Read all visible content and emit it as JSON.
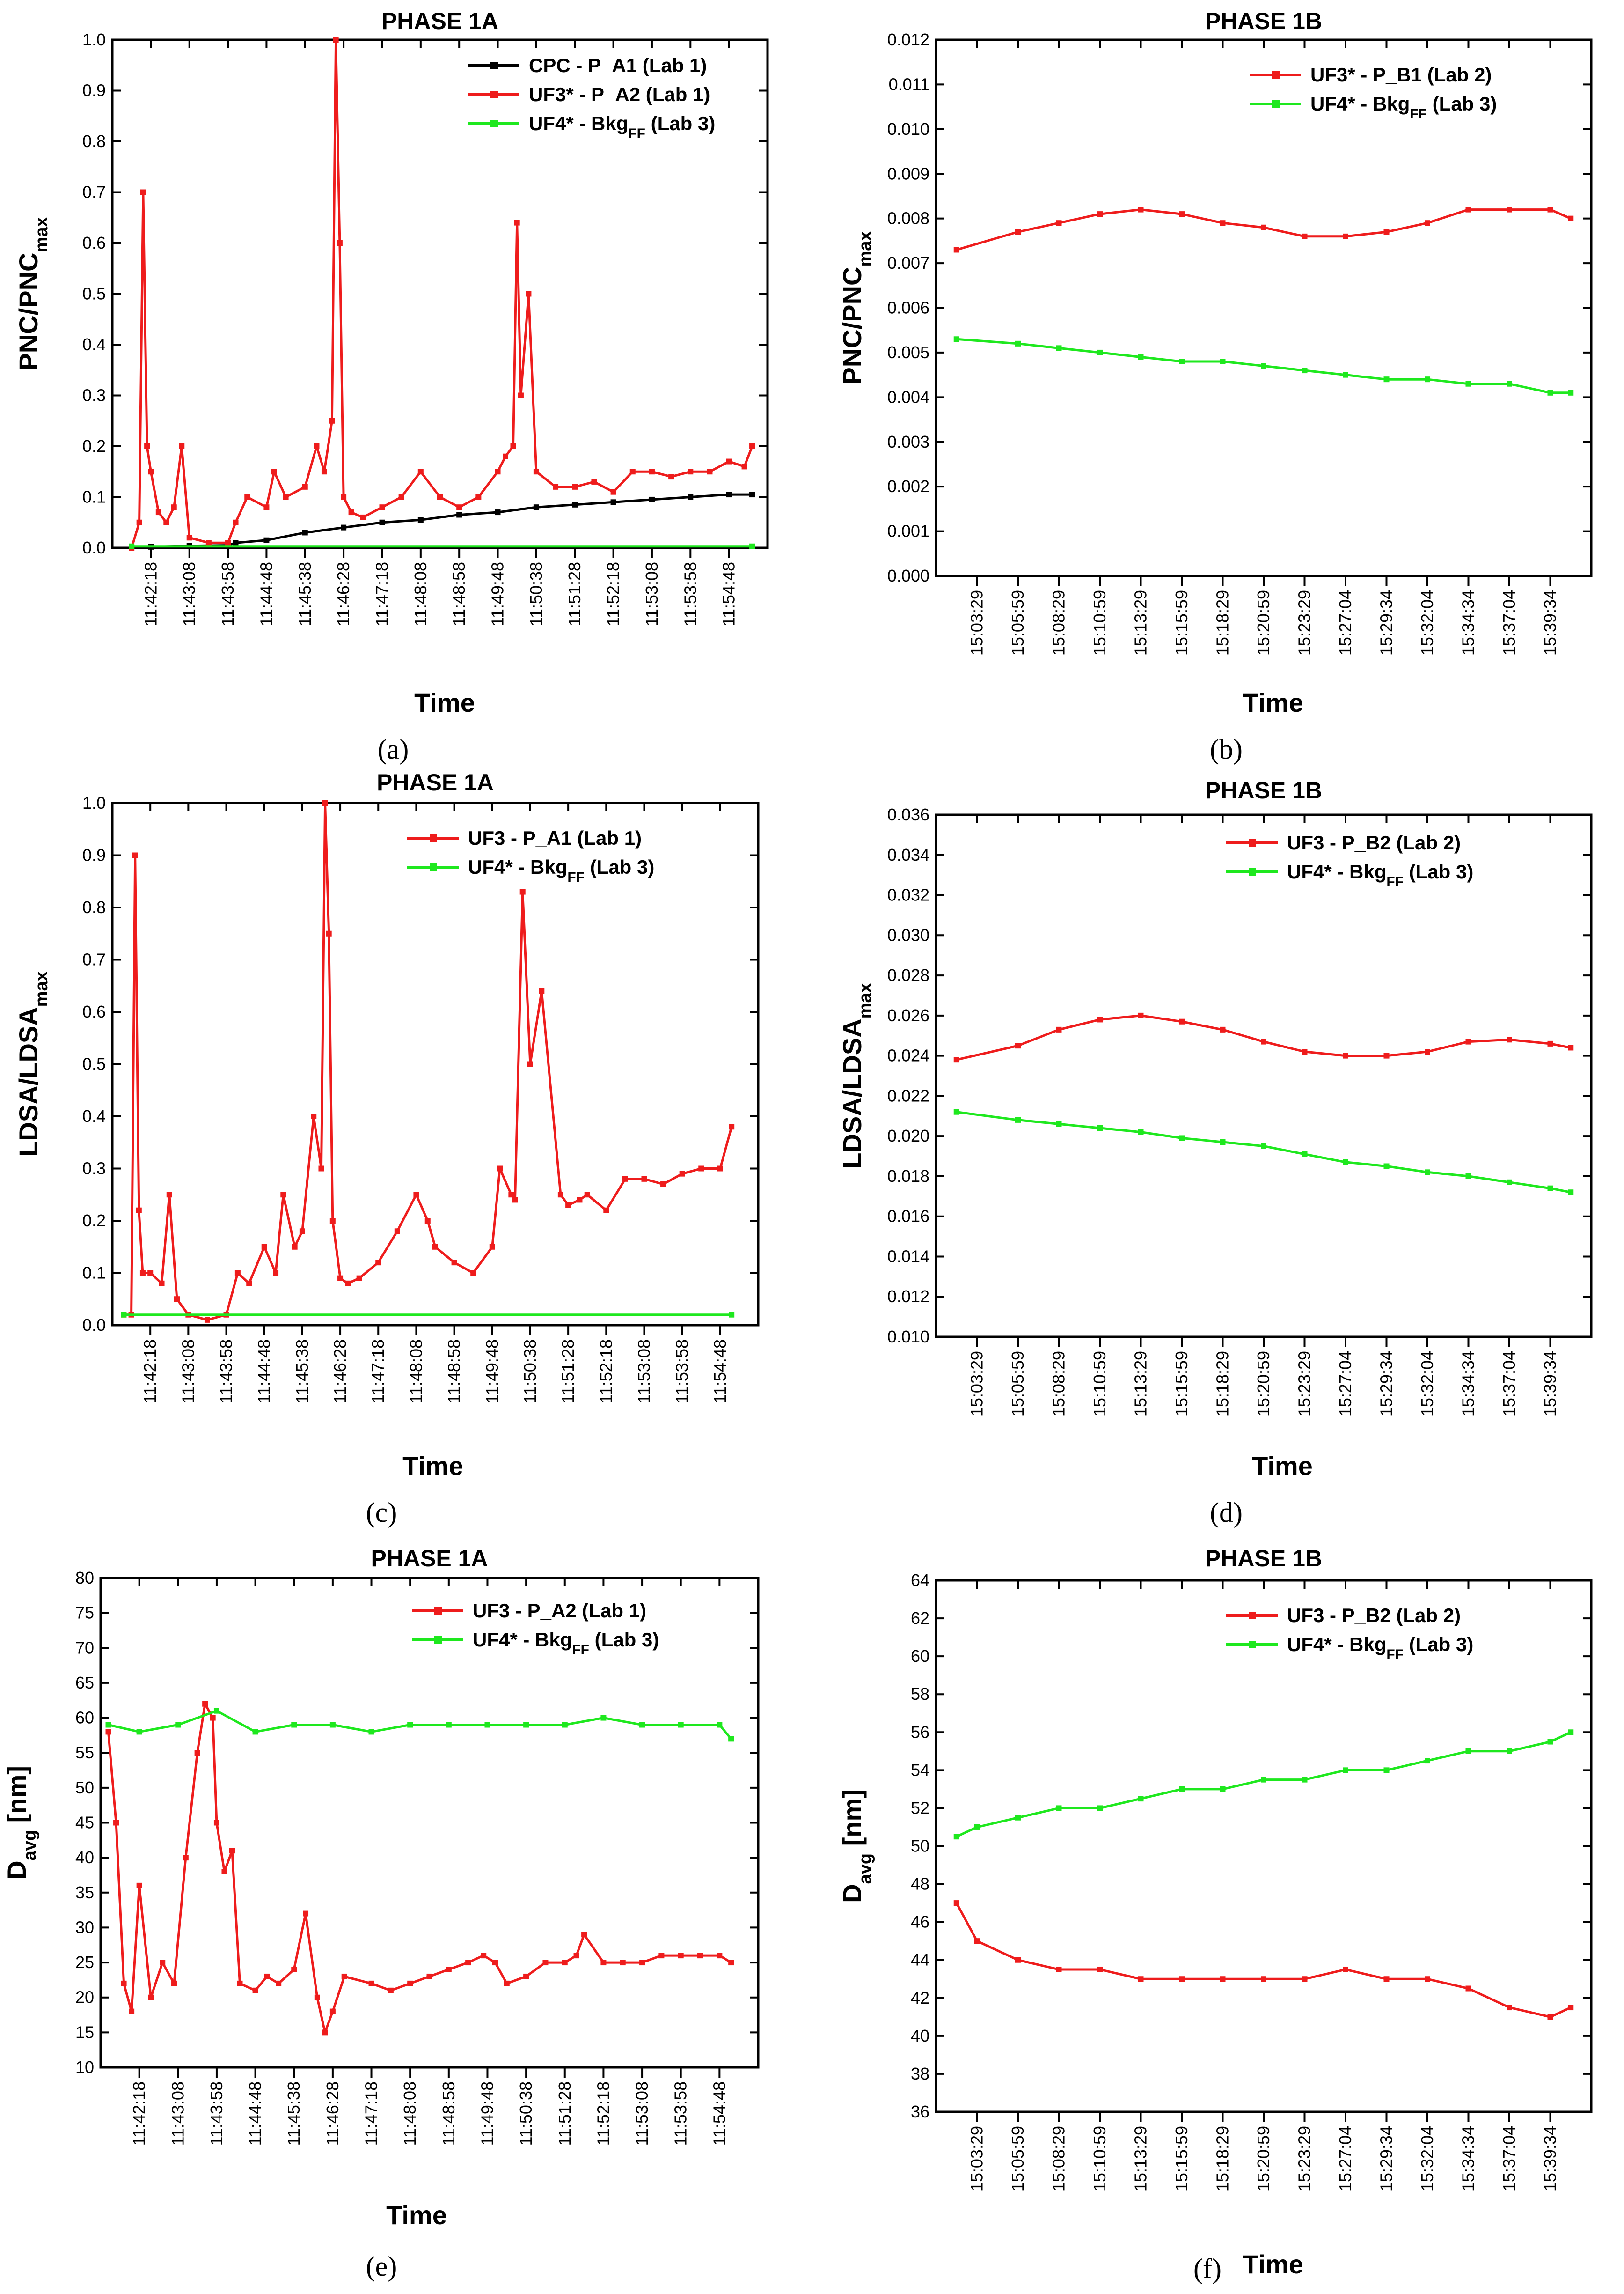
{
  "chart_data": [
    {
      "panel": "a",
      "type": "line",
      "title": "PHASE 1A",
      "caption": "(a)",
      "xlabel": "Time",
      "ylabel": "PNC/PNC",
      "ylabel_sub": "max",
      "ylim": [
        0,
        1.0
      ],
      "yticks": [
        0.0,
        0.1,
        0.2,
        0.3,
        0.4,
        0.5,
        0.6,
        0.7,
        0.8,
        0.9,
        1.0
      ],
      "ytick_labels": [
        "0.0",
        "0.1",
        "0.2",
        "0.3",
        "0.4",
        "0.5",
        "0.6",
        "0.7",
        "0.8",
        "0.9",
        "1.0"
      ],
      "xtick_labels": [
        "11:42:18",
        "11:43:08",
        "11:43:58",
        "11:44:48",
        "11:45:38",
        "11:46:28",
        "11:47:18",
        "11:48:08",
        "11:48:58",
        "11:49:48",
        "11:50:38",
        "11:51:28",
        "11:52:18",
        "11:53:08",
        "11:53:58",
        "11:54:48"
      ],
      "series": [
        {
          "name": "CPC - P_A1 (Lab 1)",
          "sub": "",
          "color": "#000000",
          "x": [
            0,
            1,
            2,
            2.2,
            3,
            4,
            5,
            6,
            7,
            8,
            9,
            10,
            11,
            12,
            13,
            14,
            15,
            15.6
          ],
          "y": [
            0.002,
            0.004,
            0.005,
            0.01,
            0.015,
            0.03,
            0.04,
            0.05,
            0.055,
            0.065,
            0.07,
            0.08,
            0.085,
            0.09,
            0.095,
            0.1,
            0.105,
            0.105
          ]
        },
        {
          "name": "UF3* - P_A2 (Lab 1)",
          "sub": "",
          "color": "#ee1c1c",
          "x": [
            -0.5,
            -0.3,
            -0.2,
            -0.1,
            0,
            0.2,
            0.4,
            0.6,
            0.8,
            1,
            1.5,
            2,
            2.2,
            2.5,
            3,
            3.2,
            3.5,
            4,
            4.3,
            4.5,
            4.7,
            4.8,
            4.9,
            5,
            5.2,
            5.5,
            6,
            6.5,
            7,
            7.5,
            8,
            8.5,
            9,
            9.2,
            9.4,
            9.5,
            9.6,
            9.8,
            10,
            10.5,
            11,
            11.5,
            12,
            12.5,
            13,
            13.5,
            14,
            14.5,
            15,
            15.4,
            15.6
          ],
          "y": [
            0.0,
            0.05,
            0.7,
            0.2,
            0.15,
            0.07,
            0.05,
            0.08,
            0.2,
            0.02,
            0.01,
            0.01,
            0.05,
            0.1,
            0.08,
            0.15,
            0.1,
            0.12,
            0.2,
            0.15,
            0.25,
            1.0,
            0.6,
            0.1,
            0.07,
            0.06,
            0.08,
            0.1,
            0.15,
            0.1,
            0.08,
            0.1,
            0.15,
            0.18,
            0.2,
            0.64,
            0.3,
            0.5,
            0.15,
            0.12,
            0.12,
            0.13,
            0.11,
            0.15,
            0.15,
            0.14,
            0.15,
            0.15,
            0.17,
            0.16,
            0.2
          ]
        },
        {
          "name": "UF4* - Bkg",
          "sub": "FF",
          "suffix": " (Lab 3)",
          "color": "#1ee81e",
          "x": [
            -0.5,
            15.6
          ],
          "y": [
            0.003,
            0.003
          ]
        }
      ]
    },
    {
      "panel": "b",
      "type": "line",
      "title": "PHASE 1B",
      "caption": "(b)",
      "xlabel": "Time",
      "ylabel": "PNC/PNC",
      "ylabel_sub": "max",
      "ylim": [
        0,
        0.012
      ],
      "yticks": [
        0.0,
        0.001,
        0.002,
        0.003,
        0.004,
        0.005,
        0.006,
        0.007,
        0.008,
        0.009,
        0.01,
        0.011,
        0.012
      ],
      "ytick_labels": [
        "0.000",
        "0.001",
        "0.002",
        "0.003",
        "0.004",
        "0.005",
        "0.006",
        "0.007",
        "0.008",
        "0.009",
        "0.010",
        "0.011",
        "0.012"
      ],
      "xtick_labels": [
        "15:03:29",
        "15:05:59",
        "15:08:29",
        "15:10:59",
        "15:13:29",
        "15:15:59",
        "15:18:29",
        "15:20:59",
        "15:23:29",
        "15:27:04",
        "15:29:34",
        "15:32:04",
        "15:34:34",
        "15:37:04",
        "15:39:34"
      ],
      "series": [
        {
          "name": "UF3* - P_B1 (Lab 2)",
          "sub": "",
          "color": "#ee1c1c",
          "x": [
            -0.5,
            1,
            2,
            3,
            4,
            5,
            6,
            7,
            8,
            9,
            10,
            11,
            12,
            13,
            14,
            14.5
          ],
          "y": [
            0.0073,
            0.0077,
            0.0079,
            0.0081,
            0.0082,
            0.0081,
            0.0079,
            0.0078,
            0.0076,
            0.0076,
            0.0077,
            0.0079,
            0.0082,
            0.0082,
            0.0082,
            0.008
          ]
        },
        {
          "name": "UF4* - Bkg",
          "sub": "FF",
          "suffix": " (Lab 3)",
          "color": "#1ee81e",
          "x": [
            -0.5,
            1,
            2,
            3,
            4,
            5,
            6,
            7,
            8,
            9,
            10,
            11,
            12,
            13,
            14,
            14.5
          ],
          "y": [
            0.0053,
            0.0052,
            0.0051,
            0.005,
            0.0049,
            0.0048,
            0.0048,
            0.0047,
            0.0046,
            0.0045,
            0.0044,
            0.0044,
            0.0043,
            0.0043,
            0.0041,
            0.0041
          ]
        }
      ]
    },
    {
      "panel": "c",
      "type": "line",
      "title": "PHASE 1A",
      "caption": "(c)",
      "xlabel": "Time",
      "ylabel": "LDSA/LDSA",
      "ylabel_sub": "max",
      "ylim": [
        0,
        1.0
      ],
      "yticks": [
        0.0,
        0.1,
        0.2,
        0.3,
        0.4,
        0.5,
        0.6,
        0.7,
        0.8,
        0.9,
        1.0
      ],
      "ytick_labels": [
        "0.0",
        "0.1",
        "0.2",
        "0.3",
        "0.4",
        "0.5",
        "0.6",
        "0.7",
        "0.8",
        "0.9",
        "1.0"
      ],
      "xtick_labels": [
        "11:42:18",
        "11:43:08",
        "11:43:58",
        "11:44:48",
        "11:45:38",
        "11:46:28",
        "11:47:18",
        "11:48:08",
        "11:48:58",
        "11:49:48",
        "11:50:38",
        "11:51:28",
        "11:52:18",
        "11:53:08",
        "11:53:58",
        "11:54:48"
      ],
      "series": [
        {
          "name": "UF3 - P_A1 (Lab 1)",
          "sub": "",
          "color": "#ee1c1c",
          "x": [
            -0.7,
            -0.5,
            -0.4,
            -0.3,
            -0.2,
            0,
            0.3,
            0.5,
            0.7,
            1,
            1.5,
            2,
            2.3,
            2.6,
            3,
            3.3,
            3.5,
            3.8,
            4,
            4.3,
            4.5,
            4.6,
            4.7,
            4.8,
            5,
            5.2,
            5.5,
            6,
            6.5,
            7,
            7.3,
            7.5,
            8,
            8.5,
            9,
            9.2,
            9.5,
            9.6,
            9.8,
            10,
            10.3,
            10.8,
            11,
            11.3,
            11.5,
            12,
            12.5,
            13,
            13.5,
            14,
            14.5,
            15,
            15.3
          ],
          "y": [
            0.02,
            0.02,
            0.9,
            0.22,
            0.1,
            0.1,
            0.08,
            0.25,
            0.05,
            0.02,
            0.01,
            0.02,
            0.1,
            0.08,
            0.15,
            0.1,
            0.25,
            0.15,
            0.18,
            0.4,
            0.3,
            1.0,
            0.75,
            0.2,
            0.09,
            0.08,
            0.09,
            0.12,
            0.18,
            0.25,
            0.2,
            0.15,
            0.12,
            0.1,
            0.15,
            0.3,
            0.25,
            0.24,
            0.83,
            0.5,
            0.64,
            0.25,
            0.23,
            0.24,
            0.25,
            0.22,
            0.28,
            0.28,
            0.27,
            0.29,
            0.3,
            0.3,
            0.38
          ]
        },
        {
          "name": "UF4* - Bkg",
          "sub": "FF",
          "suffix": " (Lab 3)",
          "color": "#1ee81e",
          "x": [
            -0.7,
            15.3
          ],
          "y": [
            0.02,
            0.02
          ]
        }
      ]
    },
    {
      "panel": "d",
      "type": "line",
      "title": "PHASE 1B",
      "caption": "(d)",
      "xlabel": "Time",
      "ylabel": "LDSA/LDSA",
      "ylabel_sub": "max",
      "ylim": [
        0.01,
        0.036
      ],
      "yticks": [
        0.01,
        0.012,
        0.014,
        0.016,
        0.018,
        0.02,
        0.022,
        0.024,
        0.026,
        0.028,
        0.03,
        0.032,
        0.034,
        0.036
      ],
      "ytick_labels": [
        "0.010",
        "0.012",
        "0.014",
        "0.016",
        "0.018",
        "0.020",
        "0.022",
        "0.024",
        "0.026",
        "0.028",
        "0.030",
        "0.032",
        "0.034",
        "0.036"
      ],
      "xtick_labels": [
        "15:03:29",
        "15:05:59",
        "15:08:29",
        "15:10:59",
        "15:13:29",
        "15:15:59",
        "15:18:29",
        "15:20:59",
        "15:23:29",
        "15:27:04",
        "15:29:34",
        "15:32:04",
        "15:34:34",
        "15:37:04",
        "15:39:34"
      ],
      "series": [
        {
          "name": "UF3 - P_B2 (Lab 2)",
          "sub": "",
          "color": "#ee1c1c",
          "x": [
            -0.5,
            1,
            2,
            3,
            4,
            5,
            6,
            7,
            8,
            9,
            10,
            11,
            12,
            13,
            14,
            14.5
          ],
          "y": [
            0.0238,
            0.0245,
            0.0253,
            0.0258,
            0.026,
            0.0257,
            0.0253,
            0.0247,
            0.0242,
            0.024,
            0.024,
            0.0242,
            0.0247,
            0.0248,
            0.0246,
            0.0244
          ]
        },
        {
          "name": "UF4* - Bkg",
          "sub": "FF",
          "suffix": " (Lab 3)",
          "color": "#1ee81e",
          "x": [
            -0.5,
            1,
            2,
            3,
            4,
            5,
            6,
            7,
            8,
            9,
            10,
            11,
            12,
            13,
            14,
            14.5
          ],
          "y": [
            0.0212,
            0.0208,
            0.0206,
            0.0204,
            0.0202,
            0.0199,
            0.0197,
            0.0195,
            0.0191,
            0.0187,
            0.0185,
            0.0182,
            0.018,
            0.0177,
            0.0174,
            0.0172
          ]
        }
      ]
    },
    {
      "panel": "e",
      "type": "line",
      "title": "PHASE 1A",
      "caption": "(e)",
      "xlabel": "Time",
      "ylabel": "D",
      "ylabel_sub": "avg",
      "ylabel_suffix": " [nm]",
      "ylim": [
        10,
        80
      ],
      "yticks": [
        10,
        15,
        20,
        25,
        30,
        35,
        40,
        45,
        50,
        55,
        60,
        65,
        70,
        75,
        80
      ],
      "ytick_labels": [
        "10",
        "15",
        "20",
        "25",
        "30",
        "35",
        "40",
        "45",
        "50",
        "55",
        "60",
        "65",
        "70",
        "75",
        "80"
      ],
      "xtick_labels": [
        "11:42:18",
        "11:43:08",
        "11:43:58",
        "11:44:48",
        "11:45:38",
        "11:46:28",
        "11:47:18",
        "11:48:08",
        "11:48:58",
        "11:49:48",
        "11:50:38",
        "11:51:28",
        "11:52:18",
        "11:53:08",
        "11:53:58",
        "11:54:48"
      ],
      "series": [
        {
          "name": "UF3 - P_A2 (Lab 1)",
          "sub": "",
          "color": "#ee1c1c",
          "x": [
            -0.8,
            -0.6,
            -0.4,
            -0.2,
            0,
            0.3,
            0.6,
            0.9,
            1.2,
            1.5,
            1.7,
            1.9,
            2,
            2.2,
            2.4,
            2.6,
            3,
            3.3,
            3.6,
            4,
            4.3,
            4.6,
            4.8,
            5,
            5.3,
            6,
            6.5,
            7,
            7.5,
            8,
            8.5,
            8.9,
            9.2,
            9.5,
            10,
            10.5,
            11,
            11.3,
            11.5,
            12,
            12.5,
            13,
            13.5,
            14,
            14.5,
            15,
            15.3
          ],
          "y": [
            58,
            45,
            22,
            18,
            36,
            20,
            25,
            22,
            40,
            55,
            62,
            60,
            45,
            38,
            41,
            22,
            21,
            23,
            22,
            24,
            32,
            20,
            15,
            18,
            23,
            22,
            21,
            22,
            23,
            24,
            25,
            26,
            25,
            22,
            23,
            25,
            25,
            26,
            29,
            25,
            25,
            25,
            26,
            26,
            26,
            26,
            25
          ]
        },
        {
          "name": "UF4* - Bkg",
          "sub": "FF",
          "suffix": " (Lab 3)",
          "color": "#1ee81e",
          "x": [
            -0.8,
            0,
            1,
            2,
            3,
            4,
            5,
            6,
            7,
            8,
            9,
            10,
            11,
            12,
            13,
            14,
            15,
            15.3
          ],
          "y": [
            59,
            58,
            59,
            61,
            58,
            59,
            59,
            58,
            59,
            59,
            59,
            59,
            59,
            60,
            59,
            59,
            59,
            57
          ]
        }
      ]
    },
    {
      "panel": "f",
      "type": "line",
      "title": "PHASE 1B",
      "caption": "(f)",
      "xlabel": "Time",
      "ylabel": "D",
      "ylabel_sub": "avg",
      "ylabel_suffix": " [nm]",
      "ylim": [
        36,
        64
      ],
      "yticks": [
        36,
        38,
        40,
        42,
        44,
        46,
        48,
        50,
        52,
        54,
        56,
        58,
        60,
        62,
        64
      ],
      "ytick_labels": [
        "36",
        "38",
        "40",
        "42",
        "44",
        "46",
        "48",
        "50",
        "52",
        "54",
        "56",
        "58",
        "60",
        "62",
        "64"
      ],
      "xtick_labels": [
        "15:03:29",
        "15:05:59",
        "15:08:29",
        "15:10:59",
        "15:13:29",
        "15:15:59",
        "15:18:29",
        "15:20:59",
        "15:23:29",
        "15:27:04",
        "15:29:34",
        "15:32:04",
        "15:34:34",
        "15:37:04",
        "15:39:34"
      ],
      "series": [
        {
          "name": "UF3 - P_B2 (Lab 2)",
          "sub": "",
          "color": "#ee1c1c",
          "x": [
            -0.5,
            0,
            1,
            2,
            3,
            4,
            5,
            6,
            7,
            8,
            9,
            10,
            11,
            12,
            13,
            14,
            14.5
          ],
          "y": [
            47,
            45,
            44,
            43.5,
            43.5,
            43,
            43,
            43,
            43,
            43,
            43.5,
            43,
            43,
            42.5,
            41.5,
            41,
            41.5
          ]
        },
        {
          "name": "UF4* - Bkg",
          "sub": "FF",
          "suffix": " (Lab 3)",
          "color": "#1ee81e",
          "x": [
            -0.5,
            0,
            1,
            2,
            3,
            4,
            5,
            6,
            7,
            8,
            9,
            10,
            11,
            12,
            13,
            14,
            14.5
          ],
          "y": [
            50.5,
            51,
            51.5,
            52,
            52,
            52.5,
            53,
            53,
            53.5,
            53.5,
            54,
            54,
            54.5,
            55,
            55,
            55.5,
            56
          ]
        }
      ]
    }
  ]
}
